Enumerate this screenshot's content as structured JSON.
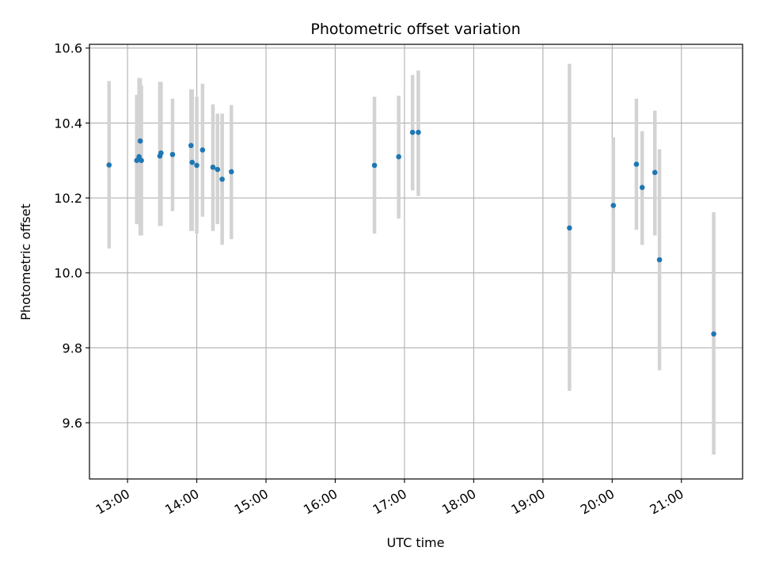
{
  "chart_data": {
    "type": "scatter",
    "title": "Photometric offset variation",
    "xlabel": "UTC time",
    "ylabel": "Photometric offset",
    "x_ticks": [
      "13:00",
      "14:00",
      "15:00",
      "16:00",
      "17:00",
      "18:00",
      "19:00",
      "20:00",
      "21:00"
    ],
    "y_ticks": [
      "9.6",
      "9.8",
      "10.0",
      "10.2",
      "10.4",
      "10.6"
    ],
    "xlim": [
      "12:27",
      "21:53"
    ],
    "ylim": [
      9.45,
      10.61
    ],
    "grid": true,
    "colors": {
      "point": "#1f77b4",
      "errorbar": "#d3d3d3",
      "grid": "#b0b0b0"
    },
    "series": [
      {
        "x": [
          "12:44",
          "13:08",
          "13:10",
          "13:11",
          "13:12",
          "13:28",
          "13:29",
          "13:39",
          "13:55",
          "13:56",
          "14:00",
          "14:05",
          "14:14",
          "14:18",
          "14:22",
          "14:30",
          "16:34",
          "16:55",
          "17:07",
          "17:12",
          "19:23",
          "20:01",
          "20:21",
          "20:26",
          "20:37",
          "20:41",
          "21:28"
        ],
        "y": [
          10.288,
          10.3,
          10.31,
          10.352,
          10.3,
          10.312,
          10.32,
          10.316,
          10.34,
          10.295,
          10.287,
          10.328,
          10.282,
          10.276,
          10.25,
          10.27,
          10.287,
          10.31,
          10.375,
          10.375,
          10.12,
          10.18,
          10.29,
          10.228,
          10.268,
          10.035,
          9.837
        ],
        "error_low": [
          10.065,
          10.13,
          10.13,
          10.1,
          10.1,
          10.125,
          10.125,
          10.165,
          10.112,
          10.112,
          10.105,
          10.15,
          10.112,
          10.13,
          10.075,
          10.09,
          10.105,
          10.145,
          10.22,
          10.205,
          9.685,
          10.0,
          10.115,
          10.075,
          10.1,
          9.74,
          9.515
        ],
        "error_high": [
          10.512,
          10.475,
          10.52,
          10.52,
          10.5,
          10.51,
          10.51,
          10.465,
          10.49,
          10.49,
          10.47,
          10.505,
          10.45,
          10.425,
          10.425,
          10.448,
          10.47,
          10.473,
          10.528,
          10.54,
          10.558,
          10.362,
          10.465,
          10.378,
          10.433,
          10.33,
          10.162
        ]
      }
    ]
  }
}
